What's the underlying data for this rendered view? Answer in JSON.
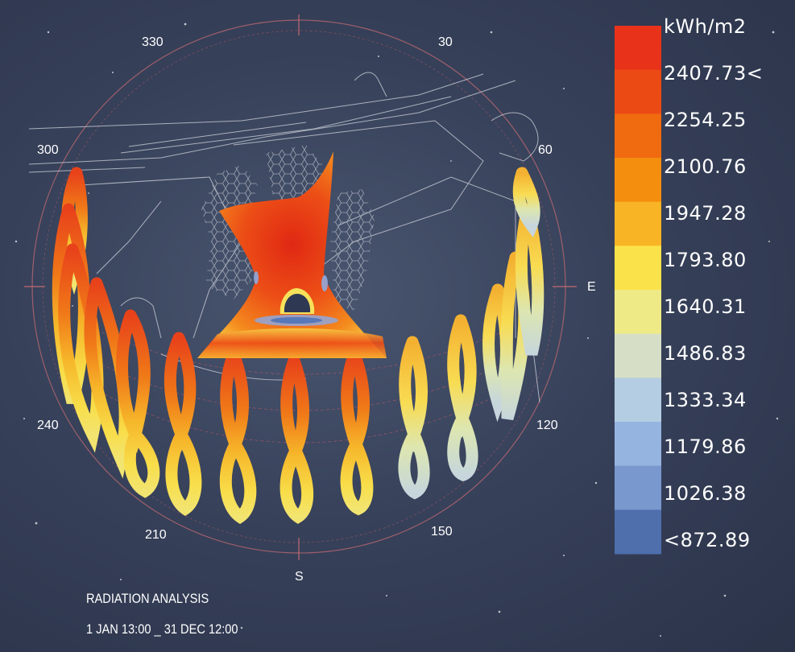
{
  "title": "RADIATION ANALYSIS",
  "period": "1 JAN 13:00 _ 31 DEC 12:00",
  "compass": {
    "north_marks": [
      "330",
      "30",
      "300",
      "60"
    ],
    "east": "E",
    "south": "S",
    "marks_low": [
      "240",
      "120",
      "210",
      "150"
    ]
  },
  "legend": {
    "unit": "kWh/m2",
    "values": [
      "2407.73<",
      "2254.25",
      "2100.76",
      "1947.28",
      "1793.80",
      "1640.31",
      "1486.83",
      "1333.34",
      "1179.86",
      "1026.38",
      "<872.89"
    ],
    "colors": [
      "#e8321a",
      "#ec4a14",
      "#f06a10",
      "#f48e0e",
      "#f8b424",
      "#fae24a",
      "#eeea86",
      "#d6dfc6",
      "#b4cde2",
      "#96b4e0",
      "#7898ce",
      "#4e6eac"
    ]
  }
}
